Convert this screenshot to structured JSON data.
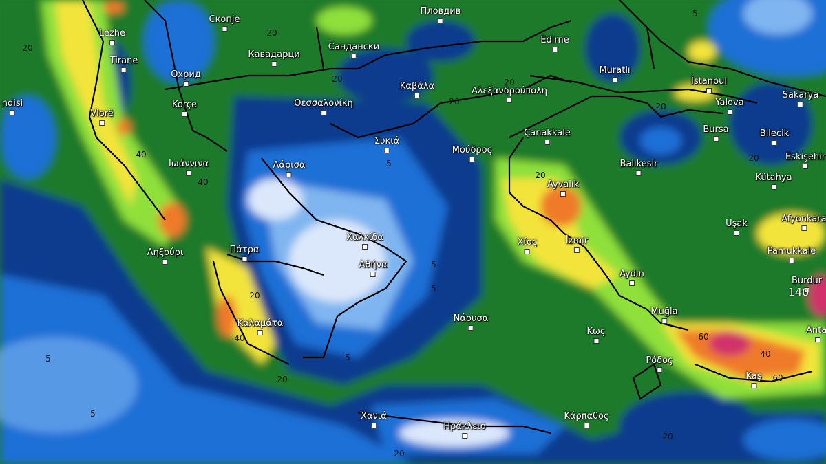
{
  "map": {
    "type": "precipitation accumulation map",
    "colors": {
      "dark_blue": "#0b3a8e",
      "mid_blue": "#1f6fd6",
      "light_blue": "#7fb5f0",
      "pale_blue": "#dbe7fb",
      "dark_green": "#1a7a2a",
      "green": "#2fb52f",
      "light_green": "#8fe03a",
      "yellow": "#f3e43a",
      "ochre": "#e0c040",
      "orange": "#ef7a2c",
      "magenta": "#d0306a",
      "border": "#000000"
    },
    "cities": [
      "Lezhe",
      "Tirane",
      "Скопје",
      "Пловдив",
      "Кавадарци",
      "Сандански",
      "Охрид",
      "Korçe",
      "Vlorë",
      "ndisi",
      "Θεσσαλονίκη",
      "Καβάλα",
      "Αλεξανδρούπολη",
      "Edirne",
      "Muratlı",
      "İstanbul",
      "Sakarya",
      "Yalova",
      "Bursa",
      "Bilecik",
      "Çanakkale",
      "Συκιά",
      "Μούδρος",
      "Λάρισα",
      "Ιωάννινα",
      "Balıkesir",
      "Eskişehir",
      "Kütahya",
      "Ayvalık",
      "Uşak",
      "Afyonkara",
      "Χαλκίδα",
      "Ληξούρι",
      "Πάτρα",
      "Χίος",
      "İzmir",
      "Αθήνα",
      "Pamukkale",
      "Aydın",
      "Burdur",
      "Καλαμάτα",
      "Νάουσα",
      "Muğla",
      "Κως",
      "Antal",
      "Ρόδος",
      "Kaş",
      "Χανιά",
      "Ηράκλειο",
      "Κάρπαθος"
    ],
    "contour_labels": [
      "20",
      "20",
      "20",
      "20",
      "20",
      "40",
      "40",
      "5",
      "5",
      "5",
      "5",
      "5",
      "20",
      "20",
      "20",
      "20",
      "40",
      "60",
      "40",
      "60",
      "5",
      "5",
      "20",
      "20",
      "20",
      "140"
    ]
  }
}
